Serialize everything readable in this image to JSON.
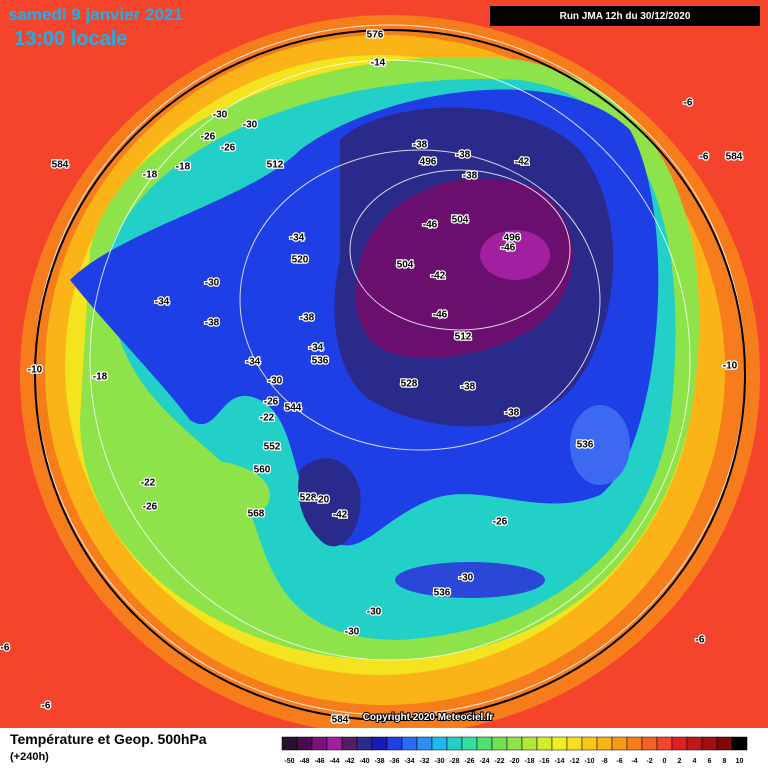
{
  "header": {
    "date": "samedi 9 janvier 2021",
    "time": "13:00 locale",
    "run": "Run JMA 12h du 30/12/2020"
  },
  "map": {
    "labels": [
      "576",
      "-14",
      "-6",
      "-6",
      "584",
      "-30",
      "-30",
      "-26",
      "-26",
      "-18",
      "-18",
      "584",
      "512",
      "-38",
      "496",
      "-38",
      "-42",
      "-38",
      "-46",
      "504",
      "496",
      "-46",
      "-34",
      "520",
      "504",
      "-42",
      "-30",
      "-34",
      "-38",
      "-38",
      "-46",
      "512",
      "-34",
      "536",
      "-34",
      "-10",
      "-18",
      "-30",
      "528",
      "-38",
      "-10",
      "-26",
      "544",
      "-22",
      "-38",
      "552",
      "536",
      "560",
      "-22",
      "-26",
      "528",
      "-20",
      "-42",
      "568",
      "-26",
      "-30",
      "536",
      "-30",
      "-30",
      "-6",
      "-6",
      "-6",
      "584"
    ],
    "copyright": "Copyright 2020 Meteociel.fr"
  },
  "footer": {
    "title": "Température et Geop. 500hPa",
    "lead": "(+240h)",
    "scale": [
      -50,
      -48,
      -46,
      -44,
      -42,
      -40,
      -38,
      -36,
      -34,
      -32,
      -30,
      -28,
      -26,
      -24,
      -22,
      -20,
      -18,
      -16,
      -14,
      -12,
      -10,
      -8,
      -6,
      -4,
      -2,
      0,
      2,
      4,
      6,
      8,
      10
    ]
  }
}
